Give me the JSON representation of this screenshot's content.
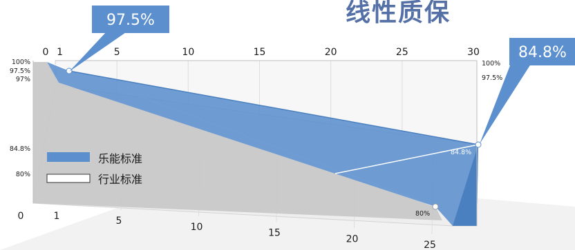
{
  "title": "线性质保",
  "callouts": {
    "left": "97.5%",
    "right": "84.8%"
  },
  "legend": [
    {
      "label": "乐能标准",
      "color": "#5b8fce"
    },
    {
      "label": "行业标准",
      "color": "#ffffff"
    }
  ],
  "chart_data": {
    "type": "area",
    "title": "线性质保",
    "top_axis_ticks": [
      "0",
      "1",
      "5",
      "10",
      "15",
      "20",
      "25",
      "30"
    ],
    "bottom_axis_ticks": [
      "0",
      "1",
      "5",
      "10",
      "15",
      "20",
      "25"
    ],
    "left_axis_ticks": [
      "100%",
      "97.5%",
      "97%",
      "84.8%",
      "80%"
    ],
    "right_axis_ticks": [
      "100%",
      "97.5%"
    ],
    "series": [
      {
        "name": "乐能标准",
        "x": [
          0,
          1,
          30
        ],
        "y": [
          100,
          97.5,
          84.8
        ],
        "color": "#5b8fce"
      },
      {
        "name": "行业标准",
        "x": [
          0,
          1,
          25
        ],
        "y": [
          100,
          97,
          80
        ],
        "color": "#c9c9c9"
      }
    ],
    "point_labels": {
      "lene_end": "84.8%",
      "industry_end": "80%"
    }
  }
}
